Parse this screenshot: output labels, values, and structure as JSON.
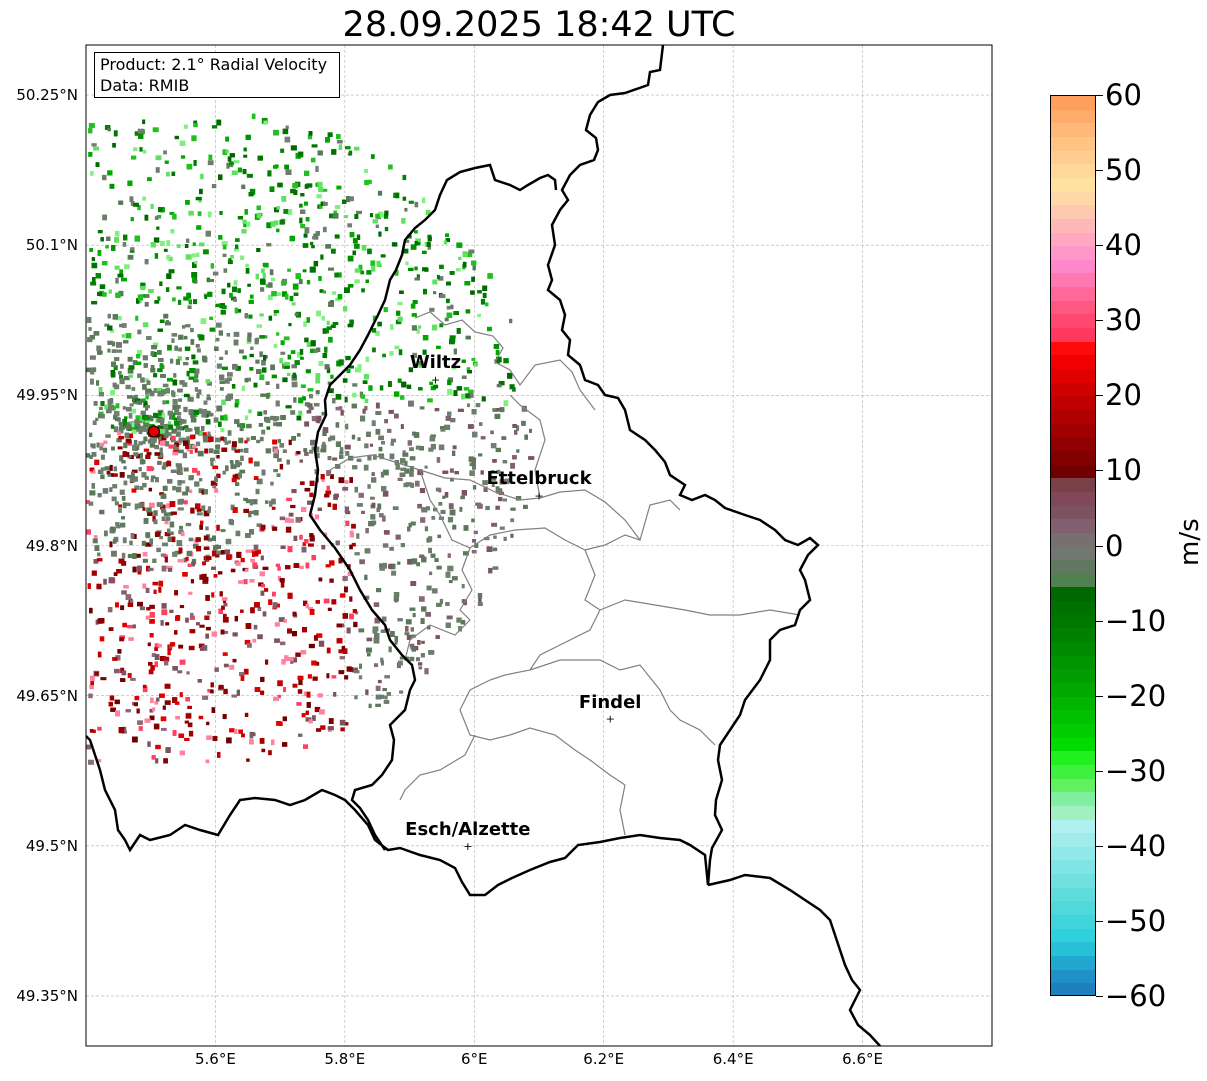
{
  "title": "28.09.2025 18:42 UTC",
  "info": {
    "product": "Product: 2.1° Radial Velocity",
    "source": "Data: RMIB"
  },
  "map": {
    "lon_range": [
      5.4,
      6.8
    ],
    "lat_range": [
      49.3,
      50.3
    ],
    "lat_ticks": [
      "50.25°N",
      "50.1°N",
      "49.95°N",
      "49.8°N",
      "49.65°N",
      "49.5°N",
      "49.35°N"
    ],
    "lon_ticks": [
      "5.6°E",
      "5.8°E",
      "6°E",
      "6.2°E",
      "6.4°E",
      "6.6°E"
    ],
    "grid": true,
    "radar_site": {
      "lon": 5.505,
      "lat": 49.914
    },
    "cities": [
      {
        "name": "Wiltz",
        "lon": 5.94,
        "lat": 49.966
      },
      {
        "name": "Ettelbruck",
        "lon": 6.1,
        "lat": 49.85
      },
      {
        "name": "Findel",
        "lon": 6.21,
        "lat": 49.627
      },
      {
        "name": "Esch/Alzette",
        "lon": 5.99,
        "lat": 49.5
      }
    ]
  },
  "colorbar": {
    "label": "m/s",
    "min": -60,
    "max": 60,
    "ticks": [
      "60",
      "50",
      "40",
      "30",
      "20",
      "10",
      "0",
      "−10",
      "−20",
      "−30",
      "−40",
      "−50",
      "−60"
    ],
    "colors_top_to_bottom": [
      "#ff9f5c",
      "#ffac6a",
      "#ffb877",
      "#ffc383",
      "#ffcd8f",
      "#ffd89a",
      "#ffe2a0",
      "#ffd8a8",
      "#ffc8b0",
      "#ffb8b8",
      "#ffa8c0",
      "#ff98c8",
      "#ff88cc",
      "#ff78b0",
      "#ff6898",
      "#ff5880",
      "#ff4870",
      "#ff3860",
      "#ff0a0a",
      "#f00000",
      "#e00000",
      "#d00000",
      "#c00000",
      "#b00000",
      "#a00000",
      "#900000",
      "#800000",
      "#700000",
      "#7a4048",
      "#804858",
      "#7c5260",
      "#806070",
      "#787070",
      "#707870",
      "#607860",
      "#508050",
      "#006800",
      "#007000",
      "#007800",
      "#008000",
      "#008a00",
      "#009400",
      "#009e00",
      "#00a800",
      "#00b400",
      "#00c000",
      "#00cc00",
      "#00dc00",
      "#20f020",
      "#40f040",
      "#60f060",
      "#80f0a0",
      "#a0f0c0",
      "#b0f0f0",
      "#a0ecec",
      "#90e8e8",
      "#80e4e4",
      "#70e0e0",
      "#60dcdc",
      "#50d8dc",
      "#40d4dc",
      "#30d0dc",
      "#28c0d4",
      "#20a8d0",
      "#1f90c8",
      "#1f80c0"
    ]
  }
}
